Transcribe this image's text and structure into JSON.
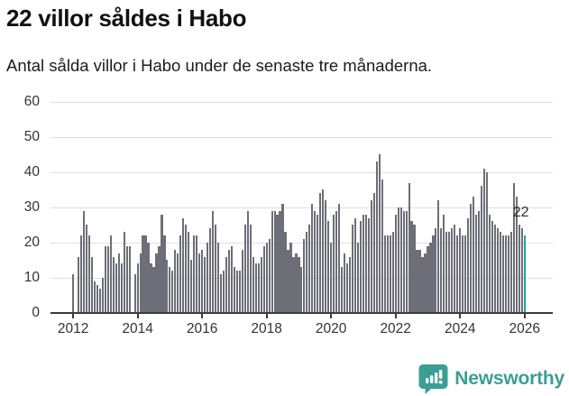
{
  "header": {
    "title": "22 villor såldes i Habo",
    "subtitle": "Antal sålda villor i Habo under de senaste tre månaderna."
  },
  "chart_data": {
    "type": "bar",
    "title": "22 villor såldes i Habo",
    "subtitle": "Antal sålda villor i Habo under de senaste tre månaderna.",
    "x_start_year": 2012,
    "x_tick_labels": [
      "2012",
      "2014",
      "2016",
      "2018",
      "2020",
      "2022",
      "2024",
      "2026"
    ],
    "months_per_tick": 24,
    "y_ticks": [
      0,
      10,
      20,
      30,
      40,
      50,
      60
    ],
    "ylim": [
      0,
      60
    ],
    "grid": true,
    "values": [
      11,
      0,
      16,
      22,
      29,
      25,
      22,
      16,
      9,
      8,
      7,
      10,
      19,
      19,
      22,
      16,
      14,
      17,
      14,
      23,
      19,
      19,
      0,
      11,
      14,
      17,
      22,
      22,
      20,
      14,
      13,
      17,
      19,
      28,
      22,
      15,
      13,
      12,
      18,
      17,
      22,
      27,
      25,
      23,
      15,
      22,
      22,
      17,
      18,
      16,
      20,
      24,
      29,
      25,
      20,
      11,
      12,
      16,
      18,
      19,
      13,
      12,
      12,
      18,
      25,
      29,
      25,
      16,
      14,
      14,
      16,
      19,
      20,
      21,
      29,
      29,
      28,
      29,
      31,
      23,
      18,
      20,
      16,
      17,
      16,
      13,
      21,
      23,
      25,
      31,
      29,
      28,
      34,
      35,
      32,
      26,
      20,
      28,
      29,
      31,
      13,
      17,
      14,
      16,
      25,
      27,
      20,
      26,
      28,
      28,
      27,
      32,
      34,
      43,
      45,
      38,
      22,
      22,
      22,
      23,
      28,
      30,
      30,
      29,
      29,
      37,
      26,
      25,
      18,
      18,
      16,
      17,
      19,
      20,
      22,
      24,
      32,
      24,
      28,
      23,
      23,
      24,
      25,
      22,
      24,
      22,
      22,
      27,
      31,
      33,
      28,
      29,
      36,
      41,
      40,
      28,
      26,
      25,
      24,
      23,
      22,
      22,
      22,
      23,
      37,
      33,
      25,
      24,
      22
    ],
    "highlight_index": 168,
    "annotation": {
      "label": "22",
      "value": 22
    },
    "colors": {
      "bar": "#6e6e78",
      "highlight": "#18a79f",
      "grid": "#e0e0e0",
      "axis": "#3c3c3c",
      "tick_label": "#333333",
      "annotation": "#2b2b2b"
    }
  },
  "footer": {
    "brand": "Newsworthy",
    "brand_color": "#3b9e94"
  }
}
